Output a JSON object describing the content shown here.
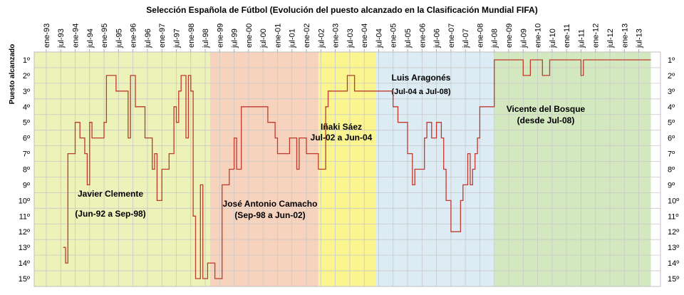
{
  "chart_data": {
    "type": "line",
    "title": "Selección Española de Fútbol (Evolución del puesto alcanzado en la Clasificación Mundial FIFA)",
    "ylabel": "Puesto alcanzado",
    "ylim": [
      1,
      15
    ],
    "y_inverted": true,
    "y_ticks": [
      "1º",
      "2º",
      "3º",
      "4º",
      "5º",
      "6º",
      "7º",
      "8º",
      "9º",
      "10º",
      "11º",
      "12º",
      "13º",
      "14º",
      "15º"
    ],
    "x_tick_labels": [
      "ene-93",
      "jul-93",
      "ene-94",
      "jul-94",
      "ene-95",
      "jul-95",
      "ene-96",
      "jul-96",
      "ene-97",
      "jul-97",
      "ene-98",
      "jul-98",
      "ene-99",
      "jul-99",
      "ene-00",
      "jul-00",
      "ene-01",
      "jul-01",
      "ene-02",
      "jul-02",
      "ene-03",
      "jul-03",
      "ene-04",
      "jul-04",
      "ene-05",
      "jul-05",
      "ene-06",
      "jul-06",
      "ene-07",
      "jul-07",
      "ene-08",
      "jul-08",
      "ene-09",
      "jul-09",
      "ene-10",
      "jul-10",
      "ene-11",
      "jul-11",
      "ene-12",
      "jul-12",
      "ene-13",
      "jul-13"
    ],
    "grid": true,
    "line_color": "#c0392b",
    "periods": [
      {
        "label": "Javier Clemente",
        "sublabel": "(Jun-92 a Sep-98)",
        "start": "1992-06",
        "end": "1998-09",
        "color": "#ecf2b8"
      },
      {
        "label": "José Antonio Camacho",
        "sublabel": "(Sep-98 a Jun-02)",
        "start": "1998-09",
        "end": "2002-06",
        "color": "#f7d3be"
      },
      {
        "label": "Iñaki Sáez",
        "sublabel": "Jul-02 a Jun-04",
        "start": "2002-06",
        "end": "2004-06",
        "color": "#fbf590"
      },
      {
        "label": "Luis Aragonés",
        "sublabel": "(Jul-04 a Jul-08)",
        "start": "2004-06",
        "end": "2008-07",
        "color": "#ddebf5"
      },
      {
        "label": "Vicente del Bosque",
        "sublabel": "(desde Jul-08)",
        "start": "2008-07",
        "end": "2013-12",
        "color": "#d4e8c0"
      }
    ],
    "series": [
      {
        "points": [
          [
            "1993-08",
            13
          ],
          [
            "1993-09",
            14
          ],
          [
            "1993-10",
            7
          ],
          [
            "1993-12",
            7
          ],
          [
            "1994-01",
            5
          ],
          [
            "1994-02",
            5
          ],
          [
            "1994-03",
            6
          ],
          [
            "1994-04",
            6
          ],
          [
            "1994-05",
            7
          ],
          [
            "1994-06",
            9
          ],
          [
            "1994-07",
            5
          ],
          [
            "1994-08",
            6
          ],
          [
            "1994-12",
            6
          ],
          [
            "1995-01",
            5
          ],
          [
            "1995-02",
            2
          ],
          [
            "1995-05",
            2
          ],
          [
            "1995-06",
            3
          ],
          [
            "1995-10",
            3
          ],
          [
            "1995-11",
            6
          ],
          [
            "1995-12",
            2
          ],
          [
            "1996-02",
            4
          ],
          [
            "1996-05",
            4
          ],
          [
            "1996-06",
            6
          ],
          [
            "1996-08",
            6
          ],
          [
            "1996-09",
            8
          ],
          [
            "1996-10",
            7
          ],
          [
            "1996-11",
            10
          ],
          [
            "1996-12",
            10
          ],
          [
            "1997-01",
            8
          ],
          [
            "1997-03",
            8
          ],
          [
            "1997-04",
            7
          ],
          [
            "1997-05",
            7
          ],
          [
            "1997-06",
            4
          ],
          [
            "1997-07",
            5
          ],
          [
            "1997-08",
            3
          ],
          [
            "1997-09",
            2
          ],
          [
            "1997-10",
            2
          ],
          [
            "1997-11",
            6
          ],
          [
            "1997-12",
            2
          ],
          [
            "1998-01",
            3
          ],
          [
            "1998-02",
            11
          ],
          [
            "1998-03",
            15
          ],
          [
            "1998-04",
            15
          ],
          [
            "1998-05",
            9
          ],
          [
            "1998-06",
            15
          ],
          [
            "1998-07",
            15
          ],
          [
            "1998-08",
            14
          ],
          [
            "1998-10",
            14
          ],
          [
            "1998-11",
            15
          ],
          [
            "1999-01",
            15
          ],
          [
            "1999-02",
            9
          ],
          [
            "1999-04",
            9
          ],
          [
            "1999-05",
            8
          ],
          [
            "1999-06",
            8
          ],
          [
            "1999-07",
            6
          ],
          [
            "1999-08",
            8
          ],
          [
            "1999-09",
            8
          ],
          [
            "1999-10",
            4
          ],
          [
            "2000-08",
            4
          ],
          [
            "2000-09",
            5
          ],
          [
            "2000-11",
            5
          ],
          [
            "2000-12",
            6
          ],
          [
            "2001-01",
            7
          ],
          [
            "2001-05",
            7
          ],
          [
            "2001-06",
            6
          ],
          [
            "2001-08",
            6
          ],
          [
            "2001-09",
            8
          ],
          [
            "2001-10",
            6
          ],
          [
            "2001-12",
            6
          ],
          [
            "2002-01",
            7
          ],
          [
            "2002-05",
            7
          ],
          [
            "2002-06",
            8
          ],
          [
            "2002-08",
            8
          ],
          [
            "2002-09",
            4
          ],
          [
            "2002-10",
            3
          ],
          [
            "2003-05",
            3
          ],
          [
            "2003-06",
            2
          ],
          [
            "2003-08",
            2
          ],
          [
            "2003-09",
            3
          ],
          [
            "2004-12",
            3
          ],
          [
            "2005-01",
            4
          ],
          [
            "2005-02",
            4
          ],
          [
            "2005-03",
            5
          ],
          [
            "2005-06",
            5
          ],
          [
            "2005-07",
            7
          ],
          [
            "2005-09",
            9
          ],
          [
            "2005-10",
            8
          ],
          [
            "2006-01",
            8
          ],
          [
            "2006-02",
            6
          ],
          [
            "2006-03",
            5
          ],
          [
            "2006-04",
            5
          ],
          [
            "2006-05",
            6
          ],
          [
            "2006-06",
            6
          ],
          [
            "2006-07",
            5
          ],
          [
            "2006-08",
            5
          ],
          [
            "2006-09",
            6
          ],
          [
            "2006-10",
            8
          ],
          [
            "2006-11",
            10
          ],
          [
            "2006-12",
            10
          ],
          [
            "2007-01",
            12
          ],
          [
            "2007-04",
            12
          ],
          [
            "2007-05",
            10
          ],
          [
            "2007-06",
            9
          ],
          [
            "2007-07",
            9
          ],
          [
            "2007-08",
            7
          ],
          [
            "2007-09",
            9
          ],
          [
            "2007-10",
            8
          ],
          [
            "2007-11",
            7
          ],
          [
            "2007-12",
            6
          ],
          [
            "2008-01",
            4
          ],
          [
            "2008-06",
            4
          ],
          [
            "2008-07",
            1
          ],
          [
            "2009-06",
            1
          ],
          [
            "2009-07",
            2
          ],
          [
            "2009-09",
            2
          ],
          [
            "2009-10",
            1
          ],
          [
            "2010-02",
            1
          ],
          [
            "2010-03",
            2
          ],
          [
            "2010-05",
            2
          ],
          [
            "2010-06",
            1
          ],
          [
            "2011-06",
            1
          ],
          [
            "2011-07",
            2
          ],
          [
            "2011-08",
            1
          ],
          [
            "2013-12",
            1
          ]
        ]
      }
    ]
  }
}
